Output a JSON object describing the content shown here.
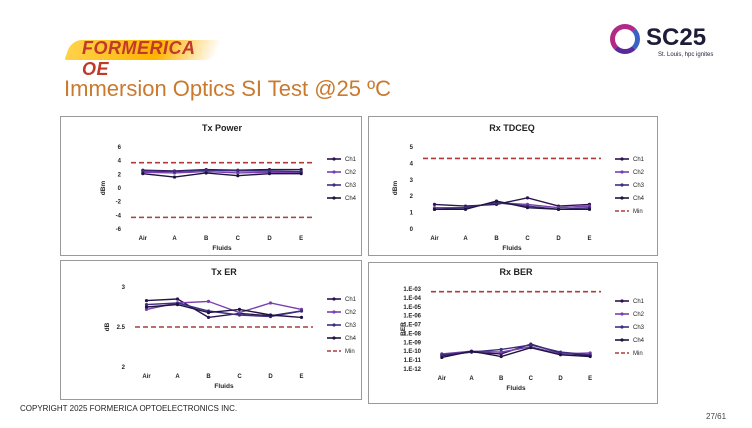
{
  "branding": {
    "left_logo_text": "FORMERICA OE",
    "right_logo_text": "SC25",
    "right_logo_sub": "St. Louis, hpc ignites"
  },
  "slide": {
    "title": "Immersion Optics SI Test @25 ºC",
    "copyright": "COPYRIGHT 2025 FORMERICA OPTOELECTRONICS INC.",
    "page": "27/61"
  },
  "colors": {
    "ch1": "#2b1450",
    "ch2": "#7a3fb0",
    "ch3": "#3c2f80",
    "ch4": "#1f1440",
    "min": "#b03a3a",
    "title": "#c97a2e"
  },
  "chart_data": [
    {
      "id": "tx-power",
      "type": "line",
      "title": "Tx Power",
      "categories": [
        "Air",
        "A",
        "B",
        "C",
        "D",
        "E"
      ],
      "xlabel": "Fluids",
      "ylabel": "dBm",
      "ylim": [
        -6,
        6
      ],
      "yticks": [
        "6",
        "4",
        "2",
        "0",
        "-2",
        "-4",
        "-6"
      ],
      "series": [
        {
          "name": "Ch1",
          "values": [
            2.6,
            2.5,
            2.7,
            2.6,
            2.7,
            2.7
          ]
        },
        {
          "name": "Ch2",
          "values": [
            2.3,
            2.2,
            2.4,
            2.2,
            2.3,
            2.3
          ]
        },
        {
          "name": "Ch3",
          "values": [
            2.5,
            2.4,
            2.6,
            2.5,
            2.5,
            2.4
          ]
        },
        {
          "name": "Ch4",
          "values": [
            2.1,
            1.6,
            2.2,
            1.8,
            2.1,
            2.1
          ]
        }
      ],
      "limits": [
        {
          "name": "Min",
          "values": [
            -4.3,
            -4.3,
            -4.3,
            -4.3,
            -4.3,
            -4.3
          ],
          "legend": false
        },
        {
          "name": "Max",
          "values": [
            3.7,
            3.7,
            3.7,
            3.7,
            3.7,
            3.7
          ],
          "legend": false
        }
      ]
    },
    {
      "id": "rx-tdceq",
      "type": "line",
      "title": "Rx TDCEQ",
      "categories": [
        "Air",
        "A",
        "B",
        "C",
        "D",
        "E"
      ],
      "xlabel": "Fluids",
      "ylabel": "dBm",
      "ylim": [
        0,
        5
      ],
      "yticks": [
        "5",
        "4",
        "3",
        "2",
        "1",
        "0"
      ],
      "series": [
        {
          "name": "Ch1",
          "values": [
            1.5,
            1.4,
            1.5,
            1.9,
            1.4,
            1.5
          ]
        },
        {
          "name": "Ch2",
          "values": [
            1.3,
            1.3,
            1.6,
            1.5,
            1.3,
            1.4
          ]
        },
        {
          "name": "Ch3",
          "values": [
            1.2,
            1.3,
            1.6,
            1.4,
            1.2,
            1.3
          ]
        },
        {
          "name": "Ch4",
          "values": [
            1.2,
            1.2,
            1.7,
            1.3,
            1.2,
            1.2
          ]
        }
      ],
      "limits": [
        {
          "name": "Min",
          "values": [
            4.3,
            4.3,
            4.3,
            4.3,
            4.3,
            4.3
          ],
          "legend": true
        }
      ]
    },
    {
      "id": "tx-er",
      "type": "line",
      "title": "Tx ER",
      "categories": [
        "Air",
        "A",
        "B",
        "C",
        "D",
        "E"
      ],
      "xlabel": "Fluids",
      "ylabel": "dB",
      "ylim": [
        2,
        3
      ],
      "yticks": [
        "3",
        "2.5",
        "2"
      ],
      "series": [
        {
          "name": "Ch1",
          "values": [
            2.83,
            2.85,
            2.62,
            2.67,
            2.64,
            2.7
          ]
        },
        {
          "name": "Ch2",
          "values": [
            2.72,
            2.8,
            2.82,
            2.68,
            2.8,
            2.72
          ]
        },
        {
          "name": "Ch3",
          "values": [
            2.78,
            2.8,
            2.7,
            2.65,
            2.63,
            2.7
          ]
        },
        {
          "name": "Ch4",
          "values": [
            2.75,
            2.78,
            2.68,
            2.72,
            2.65,
            2.62
          ]
        }
      ],
      "limits": [
        {
          "name": "Min",
          "values": [
            2.5,
            2.5,
            2.5,
            2.5,
            2.5,
            2.5
          ],
          "legend": true
        }
      ]
    },
    {
      "id": "rx-ber",
      "type": "line",
      "title": "Rx BER",
      "categories": [
        "Air",
        "A",
        "B",
        "C",
        "D",
        "E"
      ],
      "xlabel": "Fluids",
      "ylabel": "BER",
      "ylim": [
        -12,
        -3
      ],
      "yscale": "log10",
      "yticks": [
        "1.E-03",
        "1.E-04",
        "1.E-05",
        "1.E-06",
        "1.E-07",
        "1.E-08",
        "1.E-09",
        "1.E-10",
        "1.E-11",
        "1.E-12"
      ],
      "series": [
        {
          "name": "Ch1",
          "values": [
            -10.5,
            -10.1,
            -10.3,
            -9.2,
            -10.2,
            -10.5
          ]
        },
        {
          "name": "Ch2",
          "values": [
            -10.3,
            -10.0,
            -10.1,
            -9.5,
            -10.3,
            -10.2
          ]
        },
        {
          "name": "Ch3",
          "values": [
            -10.4,
            -10.1,
            -9.8,
            -9.3,
            -10.1,
            -10.4
          ]
        },
        {
          "name": "Ch4",
          "values": [
            -10.7,
            -10.0,
            -10.6,
            -9.6,
            -10.4,
            -10.6
          ]
        }
      ],
      "limits": [
        {
          "name": "Min",
          "values": [
            -3.3,
            -3.3,
            -3.3,
            -3.3,
            -3.3,
            -3.3
          ],
          "legend": true
        }
      ]
    }
  ]
}
